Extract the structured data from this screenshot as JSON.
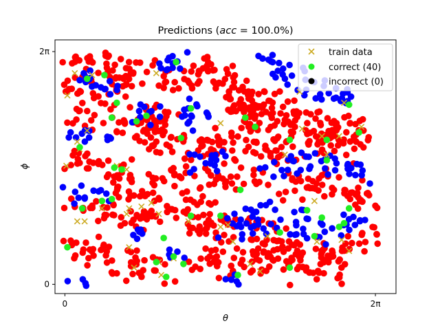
{
  "chart_data": {
    "type": "scatter",
    "title_parts": {
      "prefix": "Predictions (",
      "italic": "acc",
      "suffix": " = 100.0%)"
    },
    "xlabel": "θ",
    "ylabel": "ϕ",
    "xlim": [
      -0.2,
      6.7
    ],
    "ylim": [
      -0.25,
      6.6
    ],
    "xticks": [
      {
        "value": 0,
        "label": "0"
      },
      {
        "value": 6.2832,
        "label": "2π"
      }
    ],
    "yticks": [
      {
        "value": 0,
        "label": "0"
      },
      {
        "value": 6.2832,
        "label": "2π"
      }
    ],
    "grid": false,
    "legend_placement": "top-right",
    "legend": [
      {
        "label": "train data",
        "marker": "x",
        "color": "#ccaa22"
      },
      {
        "label": "correct (40)",
        "marker": "circle",
        "color": "#22ee22"
      },
      {
        "label": "incorrect (0)",
        "marker": "circle",
        "color": "#000000"
      }
    ],
    "colors": {
      "class_a": "#0000ff",
      "class_b": "#ff0000",
      "correct": "#22ee22",
      "train": "#ccaa22"
    },
    "class_regions": [
      {
        "class": "class_b",
        "path": [
          [
            0.0,
            5.75
          ],
          [
            0.5,
            5.9
          ],
          [
            1.1,
            5.9
          ],
          [
            1.45,
            5.7
          ],
          [
            1.05,
            5.4
          ],
          [
            0.5,
            5.2
          ],
          [
            0.0,
            5.1
          ]
        ],
        "width": 0.4
      },
      {
        "class": "class_b",
        "path": [
          [
            1.8,
            5.6
          ],
          [
            2.5,
            5.7
          ],
          [
            3.3,
            5.75
          ]
        ],
        "width": 0.5
      },
      {
        "class": "class_b",
        "path": [
          [
            3.3,
            5.5
          ],
          [
            3.8,
            5.0
          ],
          [
            4.3,
            4.75
          ],
          [
            4.9,
            4.6
          ]
        ],
        "width": 0.45
      },
      {
        "class": "class_b",
        "path": [
          [
            3.4,
            4.9
          ],
          [
            3.8,
            4.5
          ],
          [
            4.3,
            4.2
          ],
          [
            5.2,
            4.3
          ],
          [
            6.0,
            4.2
          ],
          [
            6.2,
            3.9
          ]
        ],
        "width": 0.4
      },
      {
        "class": "class_b",
        "path": [
          [
            3.6,
            5.2
          ],
          [
            3.8,
            4.4
          ]
        ],
        "width": 0.45
      },
      {
        "class": "class_b",
        "path": [
          [
            0.1,
            4.5
          ],
          [
            1.0,
            4.55
          ],
          [
            1.7,
            4.2
          ],
          [
            2.3,
            3.6
          ],
          [
            3.2,
            3.8
          ],
          [
            4.3,
            3.65
          ],
          [
            5.4,
            3.85
          ],
          [
            5.9,
            3.7
          ]
        ],
        "width": 0.45
      },
      {
        "class": "class_b",
        "path": [
          [
            0.0,
            3.3
          ],
          [
            0.6,
            3.35
          ],
          [
            1.2,
            3.1
          ]
        ],
        "width": 0.35
      },
      {
        "class": "class_b",
        "path": [
          [
            1.6,
            4.2
          ],
          [
            2.1,
            4.9
          ]
        ],
        "width": 0.35
      },
      {
        "class": "class_b",
        "path": [
          [
            0.9,
            2.6
          ],
          [
            1.5,
            2.6
          ],
          [
            2.4,
            2.8
          ],
          [
            3.2,
            2.9
          ],
          [
            3.9,
            2.8
          ]
        ],
        "width": 0.38
      },
      {
        "class": "class_b",
        "path": [
          [
            2.3,
            1.9
          ],
          [
            3.0,
            1.6
          ],
          [
            3.8,
            1.4
          ],
          [
            4.5,
            1.1
          ]
        ],
        "width": 0.45
      },
      {
        "class": "class_b",
        "path": [
          [
            0.1,
            2.1
          ],
          [
            0.8,
            2.0
          ],
          [
            1.3,
            1.7
          ],
          [
            2.3,
            2.2
          ],
          [
            3.0,
            2.1
          ]
        ],
        "width": 0.35
      },
      {
        "class": "class_b",
        "path": [
          [
            0.1,
            1.0
          ],
          [
            0.6,
            0.9
          ],
          [
            1.2,
            0.6
          ],
          [
            1.9,
            0.3
          ]
        ],
        "width": 0.45
      },
      {
        "class": "class_b",
        "path": [
          [
            2.6,
            0.8
          ],
          [
            3.2,
            0.5
          ],
          [
            4.0,
            0.7
          ],
          [
            5.0,
            0.9
          ],
          [
            5.4,
            0.3
          ]
        ],
        "width": 0.45
      },
      {
        "class": "class_b",
        "path": [
          [
            4.4,
            2.6
          ],
          [
            5.2,
            2.8
          ],
          [
            5.9,
            2.5
          ],
          [
            6.1,
            2.2
          ]
        ],
        "width": 0.45
      },
      {
        "class": "class_b",
        "path": [
          [
            4.6,
            0.25
          ],
          [
            5.2,
            0.7
          ],
          [
            5.9,
            1.1
          ]
        ],
        "width": 0.3
      },
      {
        "class": "class_b",
        "path": [
          [
            5.7,
            1.3
          ],
          [
            6.3,
            1.4
          ]
        ],
        "width": 0.35
      },
      {
        "class": "class_a",
        "path": [
          [
            0.15,
            5.65
          ],
          [
            0.5,
            5.55
          ],
          [
            1.05,
            5.15
          ]
        ],
        "width": 0.25
      },
      {
        "class": "class_a",
        "path": [
          [
            1.8,
            5.85
          ],
          [
            2.4,
            6.1
          ]
        ],
        "width": 0.3
      },
      {
        "class": "class_a",
        "path": [
          [
            4.05,
            6.1
          ],
          [
            4.4,
            5.85
          ],
          [
            4.9,
            5.35
          ],
          [
            5.4,
            5.1
          ],
          [
            5.9,
            4.95
          ]
        ],
        "width": 0.3
      },
      {
        "class": "class_a",
        "path": [
          [
            1.55,
            4.35
          ],
          [
            1.85,
            4.8
          ]
        ],
        "width": 0.3
      },
      {
        "class": "class_a",
        "path": [
          [
            2.3,
            4.3
          ],
          [
            2.75,
            4.85
          ]
        ],
        "width": 0.35
      },
      {
        "class": "class_a",
        "path": [
          [
            0.1,
            4.0
          ],
          [
            0.9,
            3.85
          ]
        ],
        "width": 0.25
      },
      {
        "class": "class_a",
        "path": [
          [
            2.5,
            3.15
          ],
          [
            3.2,
            3.3
          ]
        ],
        "width": 0.35
      },
      {
        "class": "class_a",
        "path": [
          [
            4.1,
            3.1
          ],
          [
            4.8,
            3.3
          ],
          [
            5.4,
            3.25
          ],
          [
            6.2,
            2.95
          ]
        ],
        "width": 0.3
      },
      {
        "class": "class_a",
        "path": [
          [
            0.0,
            2.45
          ],
          [
            0.8,
            2.45
          ]
        ],
        "width": 0.3
      },
      {
        "class": "class_a",
        "path": [
          [
            4.0,
            1.9
          ],
          [
            4.5,
            1.55
          ],
          [
            5.0,
            1.6
          ]
        ],
        "width": 0.45
      },
      {
        "class": "class_a",
        "path": [
          [
            3.35,
            1.3
          ],
          [
            3.7,
            1.85
          ]
        ],
        "width": 0.35
      },
      {
        "class": "class_a",
        "path": [
          [
            5.3,
            1.3
          ],
          [
            6.0,
            1.85
          ]
        ],
        "width": 0.3
      },
      {
        "class": "class_a",
        "path": [
          [
            0.1,
            0.2
          ],
          [
            0.6,
            0.05
          ]
        ],
        "width": 0.2
      },
      {
        "class": "class_a",
        "path": [
          [
            2.0,
            0.85
          ],
          [
            2.35,
            0.6
          ]
        ],
        "width": 0.25
      },
      {
        "class": "class_a",
        "path": [
          [
            3.2,
            0.1
          ],
          [
            3.6,
            0.05
          ]
        ],
        "width": 0.2
      },
      {
        "class": "class_a",
        "path": [
          [
            1.4,
            1.45
          ],
          [
            1.6,
            1.3
          ]
        ],
        "width": 0.15
      }
    ],
    "train_data": [
      [
        0.2,
        5.7
      ],
      [
        0.05,
        5.1
      ],
      [
        0.45,
        4.15
      ],
      [
        0.25,
        3.85
      ],
      [
        0.03,
        3.2
      ],
      [
        0.3,
        3.65
      ],
      [
        1.05,
        3.2
      ],
      [
        1.25,
        3.1
      ],
      [
        1.85,
        5.7
      ],
      [
        3.15,
        4.35
      ],
      [
        5.2,
        4.0
      ],
      [
        6.0,
        4.25
      ],
      [
        4.45,
        3.5
      ],
      [
        5.3,
        3.5
      ],
      [
        5.55,
        4.0
      ],
      [
        1.25,
        1.9
      ],
      [
        1.55,
        2.1
      ],
      [
        1.75,
        2.2
      ],
      [
        1.9,
        1.9
      ],
      [
        0.4,
        1.7
      ],
      [
        0.75,
        2.05
      ],
      [
        2.5,
        1.7
      ],
      [
        3.15,
        1.55
      ],
      [
        3.3,
        1.6
      ],
      [
        3.4,
        1.15
      ],
      [
        4.1,
        1.3
      ],
      [
        5.6,
        1.2
      ],
      [
        1.4,
        0.45
      ],
      [
        3.75,
        0.55
      ],
      [
        3.95,
        0.35
      ],
      [
        5.1,
        1.15
      ],
      [
        5.75,
        0.9
      ],
      [
        0.25,
        1.7
      ],
      [
        1.3,
        2.05
      ],
      [
        1.95,
        0.25
      ],
      [
        4.75,
        5.2
      ],
      [
        4.8,
        4.2
      ],
      [
        5.65,
        4.9
      ],
      [
        1.9,
        0.6
      ],
      [
        2.2,
        0.7
      ],
      [
        1.3,
        1.0
      ],
      [
        0.55,
        5.65
      ],
      [
        5.05,
        2.25
      ]
    ],
    "correct_points": [
      [
        0.45,
        5.55
      ],
      [
        0.8,
        5.65
      ],
      [
        2.25,
        6.0
      ],
      [
        1.05,
        4.9
      ],
      [
        1.45,
        4.4
      ],
      [
        1.65,
        4.55
      ],
      [
        2.55,
        4.75
      ],
      [
        2.35,
        3.95
      ],
      [
        3.65,
        4.5
      ],
      [
        3.85,
        4.25
      ],
      [
        4.55,
        3.9
      ],
      [
        5.3,
        3.9
      ],
      [
        5.95,
        4.1
      ],
      [
        5.75,
        4.85
      ],
      [
        1.0,
        3.15
      ],
      [
        1.15,
        3.1
      ],
      [
        0.3,
        3.7
      ],
      [
        0.95,
        4.5
      ],
      [
        5.3,
        3.35
      ],
      [
        0.95,
        2.3
      ],
      [
        0.35,
        2.05
      ],
      [
        0.75,
        2.25
      ],
      [
        2.0,
        1.25
      ],
      [
        2.55,
        1.85
      ],
      [
        3.15,
        1.85
      ],
      [
        3.55,
        2.55
      ],
      [
        4.35,
        1.4
      ],
      [
        5.05,
        1.3
      ],
      [
        5.55,
        1.55
      ],
      [
        5.65,
        1.65
      ],
      [
        5.75,
        2.05
      ],
      [
        4.9,
        2.0
      ],
      [
        5.2,
        1.8
      ],
      [
        1.85,
        0.6
      ],
      [
        2.2,
        0.75
      ],
      [
        2.4,
        0.55
      ],
      [
        0.05,
        1.0
      ],
      [
        2.05,
        0.2
      ],
      [
        3.5,
        0.25
      ],
      [
        4.55,
        0.45
      ]
    ],
    "incorrect_points": []
  }
}
